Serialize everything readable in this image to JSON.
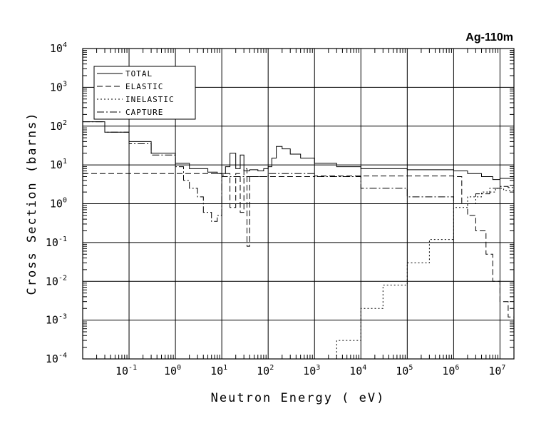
{
  "chart_data": {
    "type": "line",
    "title": "Ag-110m",
    "xlabel": "Neutron Energy ( eV)",
    "ylabel": "Cross Section (barns)",
    "xscale": "log",
    "yscale": "log",
    "xlim": [
      0.01,
      20000000
    ],
    "ylim": [
      0.0001,
      10000
    ],
    "grid": true,
    "legend_position": "top-left",
    "x_ticks": [
      {
        "base": "10",
        "exp": "-1",
        "value": 0.1
      },
      {
        "base": "10",
        "exp": "0",
        "value": 1
      },
      {
        "base": "10",
        "exp": "1",
        "value": 10
      },
      {
        "base": "10",
        "exp": "2",
        "value": 100
      },
      {
        "base": "10",
        "exp": "3",
        "value": 1000
      },
      {
        "base": "10",
        "exp": "4",
        "value": 10000
      },
      {
        "base": "10",
        "exp": "5",
        "value": 100000
      },
      {
        "base": "10",
        "exp": "6",
        "value": 1000000
      },
      {
        "base": "10",
        "exp": "7",
        "value": 10000000
      }
    ],
    "y_ticks": [
      {
        "base": "10",
        "exp": "4",
        "value": 10000
      },
      {
        "base": "10",
        "exp": "3",
        "value": 1000
      },
      {
        "base": "10",
        "exp": "2",
        "value": 100
      },
      {
        "base": "10",
        "exp": "1",
        "value": 10
      },
      {
        "base": "10",
        "exp": "0",
        "value": 1
      },
      {
        "base": "10",
        "exp": "-1",
        "value": 0.1
      },
      {
        "base": "10",
        "exp": "-2",
        "value": 0.01
      },
      {
        "base": "10",
        "exp": "-3",
        "value": 0.001
      },
      {
        "base": "10",
        "exp": "-4",
        "value": 0.0001
      }
    ],
    "series": [
      {
        "name": "TOTAL",
        "dash": "none",
        "x": [
          0.01,
          0.03,
          0.1,
          0.3,
          1,
          2,
          5,
          8,
          10,
          12,
          15,
          20,
          25,
          30,
          40,
          60,
          80,
          100,
          120,
          150,
          200,
          300,
          500,
          1000,
          3000,
          10000,
          100000,
          1000000,
          2000000,
          4000000,
          7000000,
          10000000,
          20000000
        ],
        "y": [
          130,
          70,
          40,
          20,
          11,
          8,
          6.5,
          6,
          6,
          9,
          20,
          8,
          18,
          7,
          7.5,
          7,
          8,
          9,
          15,
          30,
          26,
          19,
          15,
          11,
          9,
          8,
          7.5,
          7,
          6,
          5,
          4.2,
          4.5,
          4
        ]
      },
      {
        "name": "ELASTIC",
        "dash": "8,4",
        "x": [
          0.01,
          0.1,
          1,
          10,
          12,
          15,
          20,
          25,
          30,
          35,
          40,
          60,
          100,
          200,
          1000,
          10000,
          100000,
          1000000,
          1500000,
          2000000,
          3000000,
          5000000,
          7000000,
          10000000,
          15000000,
          20000000
        ],
        "y": [
          6,
          6,
          6,
          5.5,
          6,
          0.8,
          6,
          0.6,
          8,
          0.08,
          5,
          5,
          5,
          5,
          5.2,
          5.2,
          5.2,
          5,
          1,
          0.5,
          0.2,
          0.05,
          0.01,
          0.003,
          0.0012,
          0.001
        ]
      },
      {
        "name": "INELASTIC",
        "dash": "2,3",
        "x": [
          1000,
          3000,
          10000,
          30000,
          100000,
          300000,
          1000000,
          2000000,
          4000000,
          8000000,
          12000000,
          20000000
        ],
        "y": [
          0.0001,
          0.0003,
          0.002,
          0.008,
          0.03,
          0.12,
          0.8,
          1.5,
          2,
          2.5,
          2.2,
          0.1
        ]
      },
      {
        "name": "CAPTURE",
        "dash": "10,3,2,3",
        "x": [
          0.01,
          0.03,
          0.1,
          0.3,
          1,
          1.5,
          2,
          3,
          4,
          6,
          8,
          10,
          100,
          1000,
          10000,
          100000,
          1000000,
          3000000,
          6000000,
          10000000,
          15000000,
          20000000
        ],
        "y": [
          130,
          70,
          35,
          18,
          9,
          4,
          2.5,
          1.5,
          0.6,
          0.35,
          0.5,
          5,
          6,
          5,
          2.5,
          1.5,
          1,
          1.8,
          2.5,
          2.8,
          2.6,
          2.5
        ]
      }
    ]
  }
}
